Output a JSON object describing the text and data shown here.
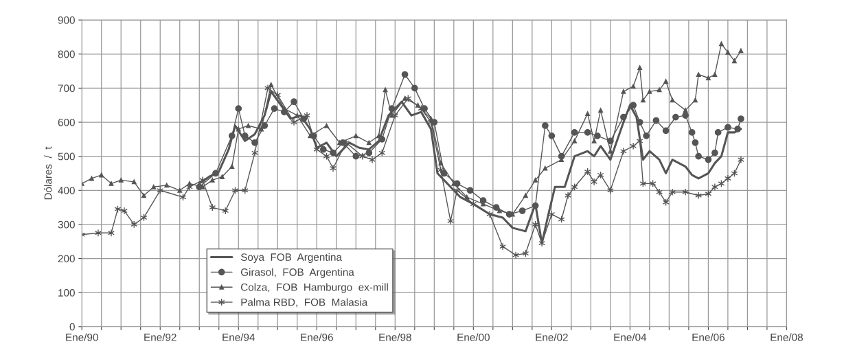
{
  "chart_data": {
    "type": "line",
    "ylabel": "Dólares  /  t",
    "xlim": [
      "1990-01",
      "2008-01"
    ],
    "ylim": [
      0,
      900
    ],
    "yticks": [
      0,
      100,
      200,
      300,
      400,
      500,
      600,
      700,
      800,
      900
    ],
    "xticks": [
      {
        "value": "1990-01",
        "label": "Ene/90"
      },
      {
        "value": "1990-07",
        "label": null
      },
      {
        "value": "1991-01",
        "label": null
      },
      {
        "value": "1991-07",
        "label": null
      },
      {
        "value": "1992-01",
        "label": "Ene/92"
      },
      {
        "value": "1992-07",
        "label": null
      },
      {
        "value": "1993-01",
        "label": null
      },
      {
        "value": "1993-07",
        "label": null
      },
      {
        "value": "1994-01",
        "label": "Ene/94"
      },
      {
        "value": "1994-07",
        "label": null
      },
      {
        "value": "1995-01",
        "label": null
      },
      {
        "value": "1995-07",
        "label": null
      },
      {
        "value": "1996-01",
        "label": "Ene/96"
      },
      {
        "value": "1996-07",
        "label": null
      },
      {
        "value": "1997-01",
        "label": null
      },
      {
        "value": "1997-07",
        "label": null
      },
      {
        "value": "1998-01",
        "label": "Ene/98"
      },
      {
        "value": "1998-07",
        "label": null
      },
      {
        "value": "1999-01",
        "label": null
      },
      {
        "value": "1999-07",
        "label": null
      },
      {
        "value": "2000-01",
        "label": "Ene/00"
      },
      {
        "value": "2000-07",
        "label": null
      },
      {
        "value": "2001-01",
        "label": null
      },
      {
        "value": "2001-07",
        "label": null
      },
      {
        "value": "2002-01",
        "label": "Ene/02"
      },
      {
        "value": "2002-07",
        "label": null
      },
      {
        "value": "2003-01",
        "label": null
      },
      {
        "value": "2003-07",
        "label": null
      },
      {
        "value": "2004-01",
        "label": "Ene/04"
      },
      {
        "value": "2004-07",
        "label": null
      },
      {
        "value": "2005-01",
        "label": null
      },
      {
        "value": "2005-07",
        "label": null
      },
      {
        "value": "2006-01",
        "label": "Ene/06"
      },
      {
        "value": "2006-07",
        "label": null
      },
      {
        "value": "2007-01",
        "label": null
      },
      {
        "value": "2007-07",
        "label": null
      },
      {
        "value": "2008-01",
        "label": "Ene/08"
      }
    ],
    "grid": true,
    "legend": "bottom left",
    "line_style": "solid",
    "series": [
      {
        "name": "Soya  FOB  Argentina",
        "color": "#555555",
        "marker": "none",
        "x": [
          "1993-01",
          "1993-04",
          "1993-07",
          "1993-10",
          "1993-12",
          "1994-03",
          "1994-06",
          "1994-09",
          "1994-11",
          "1995-02",
          "1995-05",
          "1995-08",
          "1995-11",
          "1996-01",
          "1996-04",
          "1996-07",
          "1996-11",
          "1997-02",
          "1997-05",
          "1997-08",
          "1997-11",
          "1998-03",
          "1998-06",
          "1998-09",
          "1998-12",
          "1999-02",
          "1999-06",
          "1999-09",
          "2000-01",
          "2000-06",
          "2000-10",
          "2001-01",
          "2001-05",
          "2001-08",
          "2001-10",
          "2001-12",
          "2002-02",
          "2002-05",
          "2002-08",
          "2002-12",
          "2003-02",
          "2003-04",
          "2003-07",
          "2003-11",
          "2004-01",
          "2004-03",
          "2004-05",
          "2004-07",
          "2004-10",
          "2004-12",
          "2005-02",
          "2005-06",
          "2005-08",
          "2005-10",
          "2006-01",
          "2006-03",
          "2006-05",
          "2006-07",
          "2006-09",
          "2006-11"
        ],
        "values": [
          420,
          440,
          455,
          520,
          590,
          545,
          565,
          620,
          690,
          650,
          610,
          620,
          580,
          525,
          540,
          500,
          540,
          525,
          520,
          545,
          620,
          660,
          620,
          630,
          580,
          450,
          410,
          380,
          360,
          330,
          320,
          290,
          280,
          360,
          245,
          330,
          410,
          410,
          500,
          515,
          500,
          530,
          490,
          600,
          650,
          615,
          490,
          515,
          490,
          450,
          490,
          470,
          445,
          435,
          450,
          480,
          500,
          570,
          570,
          580
        ]
      },
      {
        "name": "Girasol,  FOB  Argentina",
        "color": "#555555",
        "marker": "circle",
        "x": [
          "1993-01",
          "1993-06",
          "1993-11",
          "1994-01",
          "1994-03",
          "1994-06",
          "1994-09",
          "1994-12",
          "1995-03",
          "1995-06",
          "1995-09",
          "1995-12",
          "1996-03",
          "1996-06",
          "1996-09",
          "1997-01",
          "1997-05",
          "1997-09",
          "1997-12",
          "1998-04",
          "1998-07",
          "1998-10",
          "1999-01",
          "1999-04",
          "1999-08",
          "1999-12",
          "2000-04",
          "2000-08",
          "2000-12",
          "2001-04",
          "2001-08",
          "2001-11",
          "2002-01",
          "2002-04",
          "2002-08",
          "2002-12",
          "2003-03",
          "2003-07",
          "2003-11",
          "2004-02",
          "2004-04",
          "2004-06",
          "2004-09",
          "2004-12",
          "2005-03",
          "2005-06",
          "2005-08",
          "2005-09",
          "2005-10",
          "2006-01",
          "2006-03",
          "2006-04",
          "2006-07",
          "2006-10",
          "2006-11"
        ],
        "values": [
          410,
          450,
          560,
          640,
          560,
          540,
          590,
          640,
          630,
          660,
          610,
          560,
          520,
          510,
          540,
          500,
          510,
          550,
          640,
          740,
          700,
          640,
          600,
          450,
          420,
          400,
          370,
          350,
          330,
          340,
          355,
          590,
          560,
          500,
          570,
          570,
          560,
          545,
          615,
          650,
          600,
          560,
          605,
          575,
          615,
          620,
          570,
          540,
          500,
          490,
          510,
          570,
          585,
          580,
          610
        ]
      },
      {
        "name": "Colza,  FOB  Hamburgo  ex-mill",
        "color": "#555555",
        "marker": "triangle",
        "x": [
          "1990-01",
          "1990-04",
          "1990-07",
          "1990-10",
          "1991-01",
          "1991-05",
          "1991-08",
          "1991-11",
          "1992-03",
          "1992-07",
          "1992-10",
          "1993-02",
          "1993-05",
          "1993-08",
          "1993-11",
          "1994-01",
          "1994-04",
          "1994-08",
          "1994-11",
          "1995-03",
          "1995-07",
          "1995-11",
          "1996-04",
          "1996-08",
          "1997-01",
          "1997-05",
          "1997-08",
          "1997-10",
          "1997-12",
          "1998-04",
          "1998-08",
          "1998-12",
          "1999-03",
          "1999-07",
          "1999-11",
          "2000-04",
          "2000-09",
          "2001-01",
          "2001-05",
          "2001-08",
          "2001-11",
          "2002-04",
          "2002-08",
          "2002-12",
          "2003-02",
          "2003-04",
          "2003-07",
          "2003-11",
          "2004-02",
          "2004-04",
          "2004-05",
          "2004-07",
          "2004-10",
          "2004-12",
          "2005-02",
          "2005-06",
          "2005-09",
          "2005-10",
          "2006-01",
          "2006-03",
          "2006-05",
          "2006-07",
          "2006-09",
          "2006-11"
        ],
        "values": [
          420,
          435,
          445,
          420,
          430,
          425,
          385,
          410,
          415,
          400,
          420,
          410,
          430,
          440,
          470,
          580,
          590,
          580,
          710,
          640,
          620,
          560,
          590,
          540,
          560,
          540,
          560,
          695,
          620,
          670,
          650,
          610,
          480,
          420,
          380,
          360,
          340,
          330,
          385,
          430,
          465,
          490,
          545,
          625,
          545,
          635,
          515,
          690,
          705,
          760,
          665,
          690,
          695,
          720,
          665,
          635,
          665,
          740,
          730,
          740,
          830,
          805,
          780,
          810
        ]
      },
      {
        "name": "Palma RBD,  FOB  Malasia",
        "color": "#555555",
        "marker": "cross",
        "x": [
          "1990-01",
          "1990-06",
          "1990-10",
          "1990-12",
          "1991-02",
          "1991-05",
          "1991-08",
          "1992-01",
          "1992-08",
          "1992-10",
          "1993-02",
          "1993-05",
          "1993-09",
          "1993-12",
          "1994-03",
          "1994-06",
          "1994-10",
          "1995-01",
          "1995-06",
          "1995-10",
          "1996-01",
          "1996-04",
          "1996-06",
          "1996-10",
          "1997-03",
          "1997-06",
          "1997-09",
          "1998-01",
          "1998-05",
          "1998-09",
          "1998-12",
          "1999-03",
          "1999-06",
          "1999-08",
          "2000-01",
          "2000-06",
          "2000-10",
          "2001-02",
          "2001-05",
          "2001-08",
          "2001-10",
          "2002-01",
          "2002-04",
          "2002-06",
          "2002-08",
          "2002-12",
          "2003-02",
          "2003-04",
          "2003-07",
          "2003-11",
          "2004-02",
          "2004-04",
          "2004-05",
          "2004-08",
          "2004-10",
          "2004-12",
          "2005-02",
          "2005-06",
          "2005-10",
          "2006-01",
          "2006-03",
          "2006-05",
          "2006-07",
          "2006-09",
          "2006-11"
        ],
        "values": [
          270,
          275,
          275,
          345,
          340,
          300,
          320,
          400,
          380,
          410,
          430,
          350,
          340,
          400,
          400,
          510,
          700,
          680,
          600,
          620,
          520,
          500,
          465,
          540,
          500,
          490,
          510,
          620,
          670,
          640,
          600,
          460,
          310,
          400,
          360,
          330,
          235,
          210,
          215,
          300,
          245,
          330,
          315,
          385,
          410,
          455,
          425,
          445,
          400,
          515,
          530,
          545,
          420,
          420,
          395,
          365,
          395,
          395,
          385,
          390,
          410,
          420,
          435,
          450,
          490
        ]
      }
    ]
  }
}
